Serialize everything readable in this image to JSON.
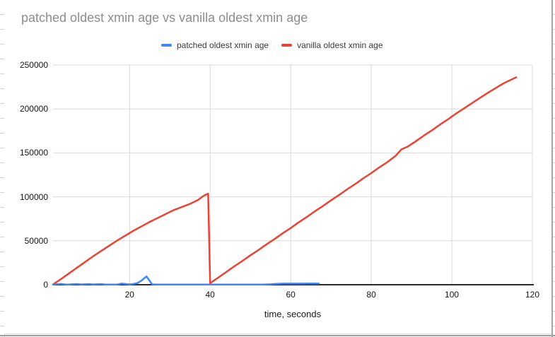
{
  "colors": {
    "blue": "#4285f4",
    "red": "#ea4335",
    "grid": "#d9d9d9",
    "axis": "#2b2b2b",
    "title_text": "#8d8d8d",
    "tick_text": "#161616",
    "legend_text": "#3a3a3a",
    "widget_border": "#9e9e9e"
  },
  "chart_data": {
    "type": "line",
    "title": "patched oldest xmin age vs vanilla oldest xmin age",
    "xlabel": "time, seconds",
    "ylabel": "",
    "xlim": [
      1,
      120
    ],
    "ylim": [
      0,
      250000
    ],
    "x_ticks": [
      20,
      40,
      60,
      80,
      100,
      120
    ],
    "y_ticks": [
      0,
      50000,
      100000,
      150000,
      200000,
      250000
    ],
    "grid": true,
    "legend_position": "top",
    "series": [
      {
        "name": "patched oldest xmin age",
        "color": "#4285f4",
        "points": [
          [
            1,
            150
          ],
          [
            2,
            650
          ],
          [
            3,
            900
          ],
          [
            4,
            350
          ],
          [
            5,
            150
          ],
          [
            6,
            650
          ],
          [
            7,
            800
          ],
          [
            8,
            300
          ],
          [
            9,
            550
          ],
          [
            10,
            800
          ],
          [
            11,
            300
          ],
          [
            12,
            550
          ],
          [
            13,
            700
          ],
          [
            14,
            250
          ],
          [
            15,
            150
          ],
          [
            16,
            200
          ],
          [
            17,
            350
          ],
          [
            18,
            1300
          ],
          [
            19,
            900
          ],
          [
            20,
            350
          ],
          [
            21,
            900
          ],
          [
            22,
            1900
          ],
          [
            23,
            4800
          ],
          [
            24.2,
            9500
          ],
          [
            25.6,
            400
          ],
          [
            27,
            200
          ],
          [
            29,
            200
          ],
          [
            31,
            250
          ],
          [
            33,
            200
          ],
          [
            35,
            200
          ],
          [
            37,
            250
          ],
          [
            39,
            200
          ],
          [
            41,
            200
          ],
          [
            43,
            250
          ],
          [
            45,
            200
          ],
          [
            47,
            200
          ],
          [
            49,
            250
          ],
          [
            51,
            200
          ],
          [
            53,
            250
          ],
          [
            55,
            500
          ],
          [
            56,
            900
          ],
          [
            57,
            1150
          ],
          [
            58,
            1250
          ],
          [
            60,
            1250
          ],
          [
            62,
            1300
          ],
          [
            64,
            1350
          ],
          [
            66,
            1350
          ],
          [
            67,
            1250
          ]
        ]
      },
      {
        "name": "vanilla oldest xmin age",
        "color": "#ea4335",
        "points": [
          [
            1,
            300
          ],
          [
            3,
            6500
          ],
          [
            5,
            13000
          ],
          [
            7,
            19500
          ],
          [
            9,
            26000
          ],
          [
            11,
            32500
          ],
          [
            13,
            38500
          ],
          [
            15,
            44500
          ],
          [
            17,
            50500
          ],
          [
            19,
            56000
          ],
          [
            21,
            61500
          ],
          [
            23,
            66500
          ],
          [
            25,
            71500
          ],
          [
            27,
            76000
          ],
          [
            29,
            80500
          ],
          [
            31,
            85000
          ],
          [
            33,
            88500
          ],
          [
            35,
            92000
          ],
          [
            37,
            96500
          ],
          [
            38.5,
            101500
          ],
          [
            39.5,
            103500
          ],
          [
            40,
            1800
          ],
          [
            42,
            8000
          ],
          [
            44,
            14500
          ],
          [
            46,
            21000
          ],
          [
            48,
            27000
          ],
          [
            50,
            33500
          ],
          [
            52,
            39500
          ],
          [
            54,
            46000
          ],
          [
            56,
            52000
          ],
          [
            58,
            58500
          ],
          [
            60,
            64500
          ],
          [
            62,
            71000
          ],
          [
            64,
            77000
          ],
          [
            66,
            83500
          ],
          [
            68,
            89500
          ],
          [
            70,
            96000
          ],
          [
            72,
            102000
          ],
          [
            74,
            108500
          ],
          [
            76,
            114500
          ],
          [
            78,
            121000
          ],
          [
            80,
            127000
          ],
          [
            82,
            133500
          ],
          [
            84,
            139500
          ],
          [
            86,
            146500
          ],
          [
            87.5,
            154000
          ],
          [
            89,
            157000
          ],
          [
            91,
            163000
          ],
          [
            93,
            169500
          ],
          [
            95,
            175500
          ],
          [
            97,
            182000
          ],
          [
            99,
            188000
          ],
          [
            101,
            194500
          ],
          [
            103,
            200500
          ],
          [
            105,
            206500
          ],
          [
            107,
            212500
          ],
          [
            109,
            218500
          ],
          [
            111,
            224000
          ],
          [
            113,
            229500
          ],
          [
            116,
            236000
          ]
        ]
      }
    ]
  }
}
